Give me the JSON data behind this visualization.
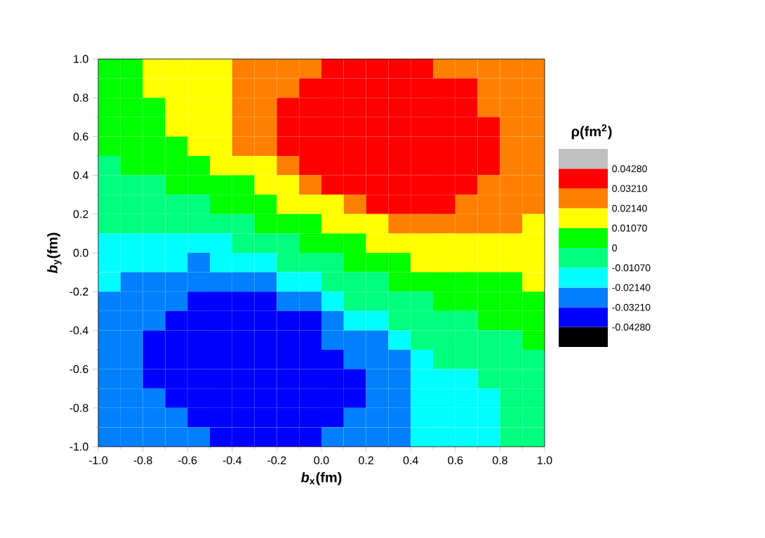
{
  "chart_data": {
    "type": "heatmap",
    "xlabel": "*b*$_{x}$(fm)",
    "ylabel": "*b*$_{y}$(fm)",
    "clabel": "ρ(fm$^{2}$)",
    "xlim": [
      -1,
      1
    ],
    "ylim": [
      -1,
      1
    ],
    "xticks": [
      {
        "value": -1,
        "label": "-1.0"
      },
      {
        "value": -0.8,
        "label": "-0.8"
      },
      {
        "value": -0.6,
        "label": "-0.6"
      },
      {
        "value": -0.4,
        "label": "-0.4"
      },
      {
        "value": -0.2,
        "label": "-0.2"
      },
      {
        "value": 0,
        "label": "0.0"
      },
      {
        "value": 0.2,
        "label": "0.2"
      },
      {
        "value": 0.4,
        "label": "0.4"
      },
      {
        "value": 0.6,
        "label": "0.6"
      },
      {
        "value": 0.8,
        "label": "0.8"
      },
      {
        "value": 1,
        "label": "1.0"
      }
    ],
    "yticks": [
      {
        "value": -1,
        "label": "-1.0"
      },
      {
        "value": -0.8,
        "label": "-0.8"
      },
      {
        "value": -0.6,
        "label": "-0.6"
      },
      {
        "value": -0.4,
        "label": "-0.4"
      },
      {
        "value": -0.2,
        "label": "-0.2"
      },
      {
        "value": 0,
        "label": "0.0"
      },
      {
        "value": 0.2,
        "label": "0.2"
      },
      {
        "value": 0.4,
        "label": "0.4"
      },
      {
        "value": 0.6,
        "label": "0.6"
      },
      {
        "value": 0.8,
        "label": "0.8"
      },
      {
        "value": 1,
        "label": "1.0"
      }
    ],
    "clim": [
      -0.0535,
      0.0535
    ],
    "cticks": [
      {
        "value": -0.0428,
        "label": "-0.04280"
      },
      {
        "value": -0.0321,
        "label": "-0.03210"
      },
      {
        "value": -0.0214,
        "label": "-0.02140"
      },
      {
        "value": -0.0107,
        "label": "-0.01070"
      },
      0,
      {
        "value": 0.0107,
        "label": "0.01070"
      },
      {
        "value": 0.0214,
        "label": "0.02140"
      },
      {
        "value": 0.0321,
        "label": "0.03210"
      },
      {
        "value": 0.0428,
        "label": "0.04280"
      }
    ],
    "cells": [
      [
        0.0054,
        0.0054,
        0.0161,
        0.0161,
        0.0161,
        0.0161,
        0.0268,
        0.0268,
        0.0268,
        0.0268,
        0.0375,
        0.0375,
        0.0375,
        0.0375,
        0.0375,
        0.0268,
        0.0268,
        0.0268,
        0.0268,
        0.0268
      ],
      [
        0.0054,
        0.0054,
        0.0161,
        0.0161,
        0.0161,
        0.0161,
        0.0268,
        0.0268,
        0.0268,
        0.0375,
        0.0375,
        0.0375,
        0.0375,
        0.0375,
        0.0375,
        0.0375,
        0.0375,
        0.0268,
        0.0268,
        0.0268
      ],
      [
        0.0054,
        0.0054,
        0.0054,
        0.0161,
        0.0161,
        0.0161,
        0.0268,
        0.0268,
        0.0375,
        0.0375,
        0.0375,
        0.0375,
        0.0375,
        0.0375,
        0.0375,
        0.0375,
        0.0375,
        0.0268,
        0.0268,
        0.0268
      ],
      [
        0.0054,
        0.0054,
        0.0054,
        0.0161,
        0.0161,
        0.0161,
        0.0268,
        0.0268,
        0.0375,
        0.0375,
        0.0375,
        0.0375,
        0.0375,
        0.0375,
        0.0375,
        0.0375,
        0.0375,
        0.0375,
        0.0268,
        0.0268
      ],
      [
        0.0054,
        0.0054,
        0.0054,
        0.0054,
        0.0161,
        0.0161,
        0.0268,
        0.0268,
        0.0375,
        0.0375,
        0.0375,
        0.0375,
        0.0375,
        0.0375,
        0.0375,
        0.0375,
        0.0375,
        0.0375,
        0.0268,
        0.0268
      ],
      [
        -0.0054,
        0.0054,
        0.0054,
        0.0054,
        0.0054,
        0.0161,
        0.0161,
        0.0161,
        0.0268,
        0.0375,
        0.0375,
        0.0375,
        0.0375,
        0.0375,
        0.0375,
        0.0375,
        0.0375,
        0.0375,
        0.0268,
        0.0268
      ],
      [
        -0.0054,
        -0.0054,
        -0.0054,
        0.0054,
        0.0054,
        0.0054,
        0.0054,
        0.0161,
        0.0161,
        0.0268,
        0.0375,
        0.0375,
        0.0375,
        0.0375,
        0.0375,
        0.0375,
        0.0375,
        0.0268,
        0.0268,
        0.0268
      ],
      [
        -0.0054,
        -0.0054,
        -0.0054,
        -0.0054,
        -0.0054,
        0.0054,
        0.0054,
        0.0054,
        0.0161,
        0.0161,
        0.0161,
        0.0268,
        0.0375,
        0.0375,
        0.0375,
        0.0375,
        0.0268,
        0.0268,
        0.0268,
        0.0268
      ],
      [
        -0.0054,
        -0.0054,
        -0.0054,
        -0.0054,
        -0.0054,
        -0.0054,
        -0.0054,
        0.0054,
        0.0054,
        0.0054,
        0.0161,
        0.0161,
        0.0161,
        0.0268,
        0.0268,
        0.0268,
        0.0268,
        0.0268,
        0.0268,
        0.0161
      ],
      [
        -0.0161,
        -0.0161,
        -0.0161,
        -0.0161,
        -0.0161,
        -0.0161,
        -0.0054,
        -0.0054,
        -0.0054,
        0.0054,
        0.0054,
        0.0054,
        0.0161,
        0.0161,
        0.0161,
        0.0161,
        0.0161,
        0.0161,
        0.0161,
        0.0161
      ],
      [
        -0.0161,
        -0.0161,
        -0.0161,
        -0.0161,
        -0.0268,
        -0.0161,
        -0.0161,
        -0.0161,
        -0.0054,
        -0.0054,
        -0.0054,
        0.0054,
        0.0054,
        0.0054,
        0.0161,
        0.0161,
        0.0161,
        0.0161,
        0.0161,
        0.0161
      ],
      [
        -0.0161,
        -0.0268,
        -0.0268,
        -0.0268,
        -0.0268,
        -0.0268,
        -0.0268,
        -0.0268,
        -0.0161,
        -0.0161,
        -0.0054,
        -0.0054,
        -0.0054,
        0.0054,
        0.0054,
        0.0054,
        0.0054,
        0.0054,
        0.0054,
        0.0161
      ],
      [
        -0.0268,
        -0.0268,
        -0.0268,
        -0.0268,
        -0.0375,
        -0.0375,
        -0.0375,
        -0.0375,
        -0.0268,
        -0.0268,
        -0.0161,
        -0.0054,
        -0.0054,
        -0.0054,
        -0.0054,
        0.0054,
        0.0054,
        0.0054,
        0.0054,
        0.0054
      ],
      [
        -0.0268,
        -0.0268,
        -0.0268,
        -0.0375,
        -0.0375,
        -0.0375,
        -0.0375,
        -0.0375,
        -0.0375,
        -0.0375,
        -0.0268,
        -0.0161,
        -0.0161,
        -0.0054,
        -0.0054,
        -0.0054,
        -0.0054,
        0.0054,
        0.0054,
        0.0054
      ],
      [
        -0.0268,
        -0.0268,
        -0.0375,
        -0.0375,
        -0.0375,
        -0.0375,
        -0.0375,
        -0.0375,
        -0.0375,
        -0.0375,
        -0.0268,
        -0.0268,
        -0.0268,
        -0.0161,
        -0.0054,
        -0.0054,
        -0.0054,
        -0.0054,
        -0.0054,
        0.0054
      ],
      [
        -0.0268,
        -0.0268,
        -0.0375,
        -0.0375,
        -0.0375,
        -0.0375,
        -0.0375,
        -0.0375,
        -0.0375,
        -0.0375,
        -0.0375,
        -0.0268,
        -0.0268,
        -0.0268,
        -0.0161,
        -0.0054,
        -0.0054,
        -0.0054,
        -0.0054,
        -0.0054
      ],
      [
        -0.0268,
        -0.0268,
        -0.0375,
        -0.0375,
        -0.0375,
        -0.0375,
        -0.0375,
        -0.0375,
        -0.0375,
        -0.0375,
        -0.0375,
        -0.0375,
        -0.0268,
        -0.0268,
        -0.0161,
        -0.0161,
        -0.0161,
        -0.0054,
        -0.0054,
        -0.0054
      ],
      [
        -0.0268,
        -0.0268,
        -0.0268,
        -0.0375,
        -0.0375,
        -0.0375,
        -0.0375,
        -0.0375,
        -0.0375,
        -0.0375,
        -0.0375,
        -0.0375,
        -0.0268,
        -0.0268,
        -0.0161,
        -0.0161,
        -0.0161,
        -0.0161,
        -0.0054,
        -0.0054
      ],
      [
        -0.0268,
        -0.0268,
        -0.0268,
        -0.0268,
        -0.0375,
        -0.0375,
        -0.0375,
        -0.0375,
        -0.0375,
        -0.0375,
        -0.0375,
        -0.0268,
        -0.0268,
        -0.0268,
        -0.0161,
        -0.0161,
        -0.0161,
        -0.0161,
        -0.0054,
        -0.0054
      ],
      [
        -0.0268,
        -0.0268,
        -0.0268,
        -0.0268,
        -0.0268,
        -0.0375,
        -0.0375,
        -0.0375,
        -0.0375,
        -0.0375,
        -0.0268,
        -0.0268,
        -0.0268,
        -0.0268,
        -0.0161,
        -0.0161,
        -0.0161,
        -0.0161,
        -0.0054,
        -0.0054
      ]
    ]
  }
}
